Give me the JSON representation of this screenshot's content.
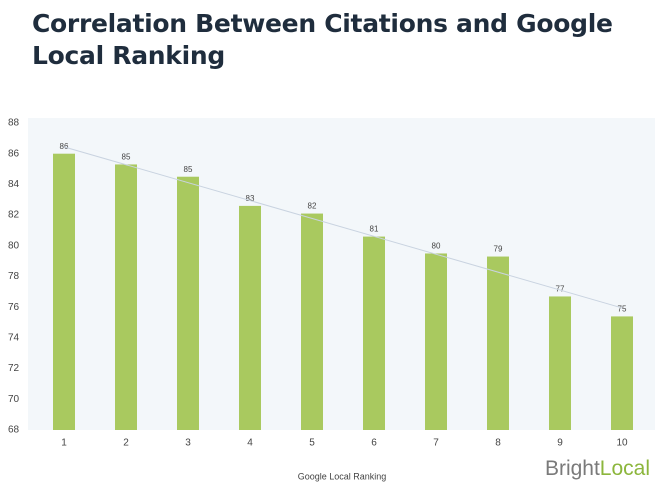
{
  "chart_data": {
    "type": "bar",
    "title": "Correlation Between Citations and Google Local Ranking",
    "x_label": "Google Local Ranking",
    "categories": [
      "1",
      "2",
      "3",
      "4",
      "5",
      "6",
      "7",
      "8",
      "9",
      "10"
    ],
    "values": [
      86.0,
      85.3,
      84.5,
      82.6,
      82.1,
      80.6,
      79.5,
      79.3,
      76.7,
      75.4
    ],
    "value_labels": [
      "86",
      "85",
      "85",
      "83",
      "82",
      "81",
      "80",
      "79",
      "77",
      "75"
    ],
    "color": "#a9c95f",
    "trendline": true,
    "trendline_color": "#c9d3e0",
    "ylim": [
      68,
      88
    ],
    "yticks": [
      68,
      70,
      72,
      74,
      76,
      78,
      80,
      82,
      84,
      86,
      88
    ],
    "grid": false,
    "logo": [
      "Bright",
      "Local"
    ]
  }
}
